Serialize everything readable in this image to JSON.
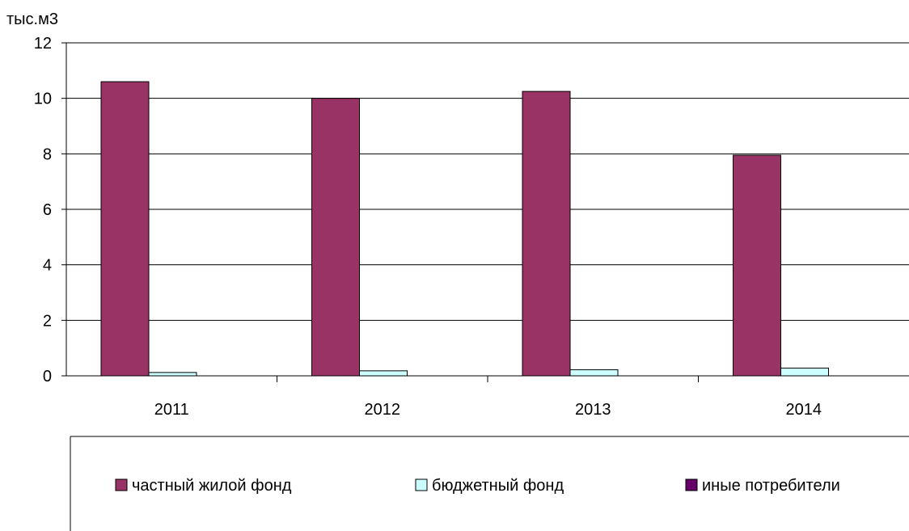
{
  "chart_data": {
    "type": "bar",
    "y_unit_label": "тыс.м3",
    "categories": [
      "2011",
      "2012",
      "2013",
      "2014"
    ],
    "series": [
      {
        "name": "частный жилой фонд",
        "values": [
          10.6,
          10.0,
          10.25,
          7.95
        ],
        "color": "#993366"
      },
      {
        "name": "бюджетный фонд",
        "values": [
          0.12,
          0.18,
          0.22,
          0.28
        ],
        "color": "#ccffff"
      },
      {
        "name": "иные потребители",
        "values": [
          0,
          0,
          0,
          0
        ],
        "color": "#660066"
      }
    ],
    "ylim": [
      0,
      12
    ],
    "yticks": [
      0,
      2,
      4,
      6,
      8,
      10,
      12
    ],
    "grid": true,
    "legend_position": "bottom"
  }
}
